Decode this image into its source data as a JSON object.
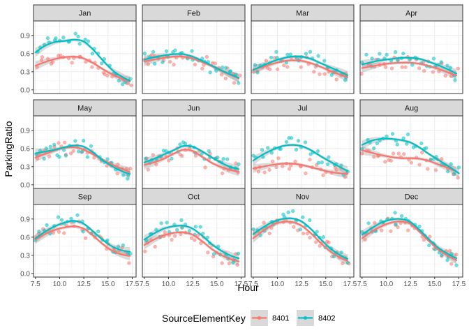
{
  "chart_data": {
    "type": "scatter",
    "xlabel": "Hour",
    "ylabel": "ParkingRatio",
    "xlim": [
      7.3,
      17.9
    ],
    "ylim": [
      -0.06,
      1.14
    ],
    "x_ticks": [
      7.5,
      10.0,
      12.5,
      15.0,
      17.5
    ],
    "x_tick_labels": [
      "7.5",
      "10.0",
      "12.5",
      "15.0",
      "17.5"
    ],
    "y_ticks": [
      0.0,
      0.3,
      0.6,
      0.9
    ],
    "y_tick_labels": [
      "0.0",
      "0.3",
      "0.6",
      "0.9"
    ],
    "grid": true,
    "legend": {
      "title": "SourceElementKey",
      "position": "bottom",
      "entries": [
        {
          "label": "8401",
          "color": "#F8766D"
        },
        {
          "label": "8402",
          "color": "#00BFC4"
        }
      ]
    },
    "facets": [
      {
        "label": "Jan",
        "series": [
          {
            "key": "8401",
            "color": "#F8766D",
            "x": [
              7.5,
              8.5,
              9.5,
              10.5,
              11.5,
              12.5,
              13.5,
              14.5,
              15.5,
              16.5,
              17.25
            ],
            "y": [
              0.4,
              0.46,
              0.51,
              0.54,
              0.55,
              0.52,
              0.44,
              0.34,
              0.25,
              0.18,
              0.14
            ]
          },
          {
            "key": "8402",
            "color": "#00BFC4",
            "x": [
              7.5,
              8.5,
              9.5,
              10.5,
              11.5,
              12.5,
              13.5,
              14.5,
              15.5,
              16.5,
              17.25
            ],
            "y": [
              0.62,
              0.73,
              0.79,
              0.81,
              0.83,
              0.8,
              0.66,
              0.48,
              0.32,
              0.21,
              0.15
            ]
          }
        ]
      },
      {
        "label": "Feb",
        "series": [
          {
            "key": "8401",
            "color": "#F8766D",
            "x": [
              7.5,
              8.5,
              9.5,
              10.5,
              11.5,
              12.5,
              13.5,
              14.5,
              15.5,
              16.5,
              17.25
            ],
            "y": [
              0.47,
              0.5,
              0.53,
              0.55,
              0.55,
              0.52,
              0.46,
              0.39,
              0.31,
              0.24,
              0.19
            ]
          },
          {
            "key": "8402",
            "color": "#00BFC4",
            "x": [
              7.5,
              8.5,
              9.5,
              10.5,
              11.5,
              12.5,
              13.5,
              14.5,
              15.5,
              16.5,
              17.25
            ],
            "y": [
              0.5,
              0.54,
              0.57,
              0.59,
              0.59,
              0.55,
              0.48,
              0.4,
              0.32,
              0.25,
              0.2
            ]
          }
        ]
      },
      {
        "label": "Mar",
        "series": [
          {
            "key": "8401",
            "color": "#F8766D",
            "x": [
              7.5,
              8.5,
              9.5,
              10.5,
              11.5,
              12.5,
              13.5,
              14.5,
              15.5,
              16.5,
              17.25
            ],
            "y": [
              0.34,
              0.38,
              0.43,
              0.47,
              0.49,
              0.48,
              0.44,
              0.38,
              0.31,
              0.25,
              0.21
            ]
          },
          {
            "key": "8402",
            "color": "#00BFC4",
            "x": [
              7.5,
              8.5,
              9.5,
              10.5,
              11.5,
              12.5,
              13.5,
              14.5,
              15.5,
              16.5,
              17.25
            ],
            "y": [
              0.33,
              0.4,
              0.47,
              0.52,
              0.55,
              0.55,
              0.51,
              0.44,
              0.37,
              0.3,
              0.24
            ]
          }
        ]
      },
      {
        "label": "Apr",
        "series": [
          {
            "key": "8401",
            "color": "#F8766D",
            "x": [
              7.5,
              8.5,
              9.5,
              10.5,
              11.5,
              12.5,
              13.5,
              14.5,
              15.5,
              16.5,
              17.25
            ],
            "y": [
              0.36,
              0.39,
              0.42,
              0.44,
              0.45,
              0.45,
              0.43,
              0.39,
              0.34,
              0.28,
              0.24
            ]
          },
          {
            "key": "8402",
            "color": "#00BFC4",
            "x": [
              7.5,
              8.5,
              9.5,
              10.5,
              11.5,
              12.5,
              13.5,
              14.5,
              15.5,
              16.5,
              17.25
            ],
            "y": [
              0.42,
              0.46,
              0.49,
              0.51,
              0.53,
              0.53,
              0.51,
              0.46,
              0.4,
              0.33,
              0.27
            ]
          }
        ]
      },
      {
        "label": "May",
        "series": [
          {
            "key": "8401",
            "color": "#F8766D",
            "x": [
              7.5,
              8.5,
              9.5,
              10.5,
              11.5,
              12.5,
              13.5,
              14.5,
              15.5,
              16.5,
              17.25
            ],
            "y": [
              0.45,
              0.51,
              0.57,
              0.61,
              0.62,
              0.58,
              0.5,
              0.41,
              0.33,
              0.26,
              0.21
            ]
          },
          {
            "key": "8402",
            "color": "#00BFC4",
            "x": [
              7.5,
              8.5,
              9.5,
              10.5,
              11.5,
              12.5,
              13.5,
              14.5,
              15.5,
              16.5,
              17.25
            ],
            "y": [
              0.52,
              0.55,
              0.58,
              0.62,
              0.65,
              0.63,
              0.53,
              0.4,
              0.3,
              0.22,
              0.18
            ]
          }
        ]
      },
      {
        "label": "Jun",
        "series": [
          {
            "key": "8401",
            "color": "#F8766D",
            "x": [
              7.5,
              8.5,
              9.5,
              10.5,
              11.5,
              12.5,
              13.5,
              14.5,
              15.5,
              16.5,
              17.25
            ],
            "y": [
              0.33,
              0.37,
              0.43,
              0.51,
              0.58,
              0.56,
              0.46,
              0.36,
              0.29,
              0.24,
              0.22
            ]
          },
          {
            "key": "8402",
            "color": "#00BFC4",
            "x": [
              7.5,
              8.5,
              9.5,
              10.5,
              11.5,
              12.5,
              13.5,
              14.5,
              15.5,
              16.5,
              17.25
            ],
            "y": [
              0.37,
              0.43,
              0.5,
              0.57,
              0.64,
              0.63,
              0.55,
              0.45,
              0.36,
              0.29,
              0.26
            ]
          }
        ]
      },
      {
        "label": "Jul",
        "series": [
          {
            "key": "8401",
            "color": "#F8766D",
            "x": [
              7.5,
              8.5,
              9.5,
              10.5,
              11.5,
              12.5,
              13.5,
              14.5,
              15.5,
              16.5,
              17.25
            ],
            "y": [
              0.27,
              0.3,
              0.33,
              0.35,
              0.35,
              0.33,
              0.29,
              0.25,
              0.21,
              0.19,
              0.18
            ]
          },
          {
            "key": "8402",
            "color": "#00BFC4",
            "x": [
              7.5,
              8.5,
              9.5,
              10.5,
              11.5,
              12.5,
              13.5,
              14.5,
              15.5,
              16.5,
              17.25
            ],
            "y": [
              0.4,
              0.5,
              0.58,
              0.64,
              0.66,
              0.64,
              0.57,
              0.47,
              0.38,
              0.29,
              0.23
            ]
          }
        ]
      },
      {
        "label": "Aug",
        "series": [
          {
            "key": "8401",
            "color": "#F8766D",
            "x": [
              7.5,
              8.5,
              9.5,
              10.5,
              11.5,
              12.5,
              13.5,
              14.5,
              15.5,
              16.5,
              17.25
            ],
            "y": [
              0.57,
              0.53,
              0.49,
              0.46,
              0.44,
              0.44,
              0.43,
              0.39,
              0.33,
              0.27,
              0.22
            ]
          },
          {
            "key": "8402",
            "color": "#00BFC4",
            "x": [
              7.5,
              8.5,
              9.5,
              10.5,
              11.5,
              12.5,
              13.5,
              14.5,
              15.5,
              16.5,
              17.5
            ],
            "y": [
              0.66,
              0.73,
              0.76,
              0.76,
              0.74,
              0.7,
              0.61,
              0.5,
              0.4,
              0.3,
              0.19
            ]
          }
        ]
      },
      {
        "label": "Sep",
        "series": [
          {
            "key": "8401",
            "color": "#F8766D",
            "x": [
              7.5,
              8.5,
              9.5,
              10.5,
              11.5,
              12.5,
              13.5,
              14.5,
              15.5,
              16.5,
              17.25
            ],
            "y": [
              0.56,
              0.65,
              0.72,
              0.76,
              0.78,
              0.74,
              0.62,
              0.48,
              0.37,
              0.31,
              0.29
            ]
          },
          {
            "key": "8402",
            "color": "#00BFC4",
            "x": [
              7.5,
              8.5,
              9.5,
              10.5,
              11.5,
              12.5,
              13.5,
              14.5,
              15.5,
              16.5,
              17.25
            ],
            "y": [
              0.58,
              0.69,
              0.78,
              0.84,
              0.87,
              0.82,
              0.69,
              0.55,
              0.44,
              0.38,
              0.36
            ]
          }
        ]
      },
      {
        "label": "Oct",
        "series": [
          {
            "key": "8401",
            "color": "#F8766D",
            "x": [
              7.5,
              8.5,
              9.5,
              10.5,
              11.5,
              12.5,
              13.5,
              14.5,
              15.5,
              16.5,
              17.25
            ],
            "y": [
              0.47,
              0.56,
              0.63,
              0.67,
              0.68,
              0.64,
              0.53,
              0.4,
              0.3,
              0.23,
              0.2
            ]
          },
          {
            "key": "8402",
            "color": "#00BFC4",
            "x": [
              7.5,
              8.5,
              9.5,
              10.5,
              11.5,
              12.5,
              13.5,
              14.5,
              15.5,
              16.5,
              17.25
            ],
            "y": [
              0.56,
              0.66,
              0.74,
              0.78,
              0.79,
              0.74,
              0.62,
              0.48,
              0.37,
              0.29,
              0.25
            ]
          }
        ]
      },
      {
        "label": "Nov",
        "series": [
          {
            "key": "8401",
            "color": "#F8766D",
            "x": [
              7.5,
              8.5,
              9.5,
              10.5,
              11.5,
              12.5,
              13.5,
              14.5,
              15.5,
              16.5,
              17.25
            ],
            "y": [
              0.58,
              0.7,
              0.8,
              0.85,
              0.85,
              0.79,
              0.66,
              0.5,
              0.36,
              0.26,
              0.21
            ]
          },
          {
            "key": "8402",
            "color": "#00BFC4",
            "x": [
              7.5,
              8.5,
              9.5,
              10.5,
              11.5,
              12.5,
              13.5,
              14.5,
              15.5,
              16.5,
              17.25
            ],
            "y": [
              0.65,
              0.76,
              0.85,
              0.9,
              0.91,
              0.86,
              0.73,
              0.56,
              0.41,
              0.3,
              0.24
            ]
          }
        ]
      },
      {
        "label": "Dec",
        "series": [
          {
            "key": "8401",
            "color": "#F8766D",
            "x": [
              7.5,
              8.5,
              9.5,
              10.5,
              11.5,
              12.5,
              13.5,
              14.5,
              15.5,
              16.5,
              17.25
            ],
            "y": [
              0.58,
              0.69,
              0.78,
              0.84,
              0.86,
              0.82,
              0.68,
              0.52,
              0.38,
              0.28,
              0.22
            ]
          },
          {
            "key": "8402",
            "color": "#00BFC4",
            "x": [
              7.5,
              8.5,
              9.5,
              10.5,
              11.5,
              12.5,
              13.5,
              14.5,
              15.5,
              16.5,
              17.25
            ],
            "y": [
              0.64,
              0.75,
              0.84,
              0.89,
              0.9,
              0.85,
              0.71,
              0.55,
              0.41,
              0.31,
              0.25
            ]
          }
        ]
      }
    ]
  }
}
